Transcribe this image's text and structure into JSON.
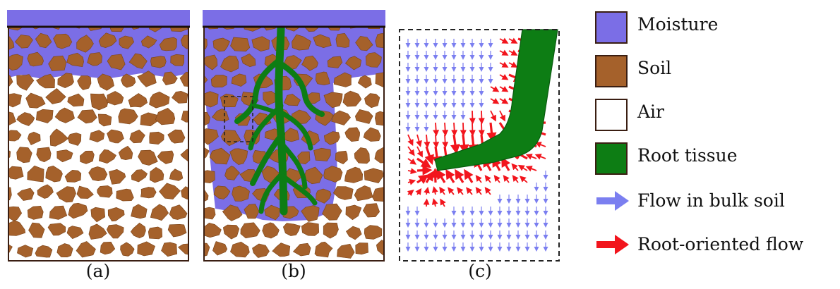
{
  "colors": {
    "moisture": "#7b6ee6",
    "soil": "#a5612b",
    "air": "#ffffff",
    "root": "#0d7d14",
    "root_edge": "#0a5a10",
    "bulk_flow": "#7b7ff0",
    "root_flow": "#f2151d",
    "frame": "#3a1e12"
  },
  "panels": {
    "a": {
      "label": "(a)"
    },
    "b": {
      "label": "(b)"
    },
    "c": {
      "label": "(c)"
    }
  },
  "legend": [
    {
      "key": "moisture",
      "label": "Moisture",
      "kind": "swatch",
      "icon": "moisture-swatch"
    },
    {
      "key": "soil",
      "label": "Soil",
      "kind": "swatch",
      "icon": "soil-swatch"
    },
    {
      "key": "air",
      "label": "Air",
      "kind": "swatch",
      "icon": "air-swatch"
    },
    {
      "key": "root",
      "label": "Root tissue",
      "kind": "swatch",
      "icon": "root-swatch"
    },
    {
      "key": "bulk_flow",
      "label": "Flow in bulk soil",
      "kind": "arrow",
      "icon": "blue-arrow-icon"
    },
    {
      "key": "root_flow",
      "label": "Root-oriented flow",
      "kind": "arrow",
      "icon": "red-arrow-icon"
    }
  ]
}
